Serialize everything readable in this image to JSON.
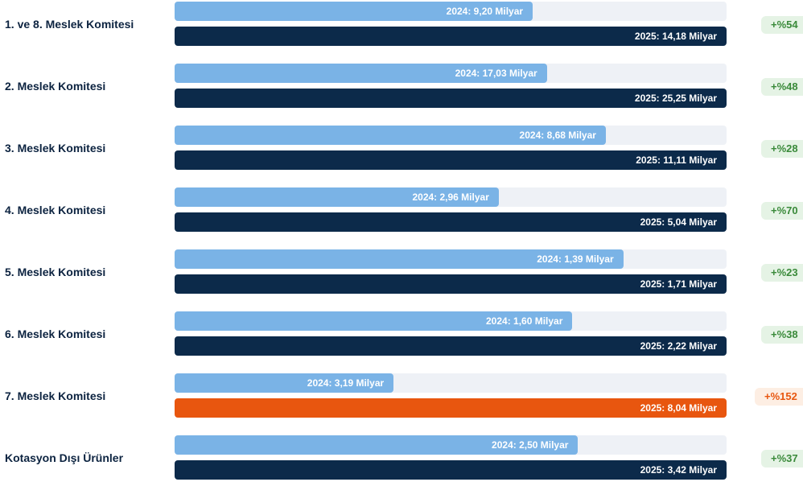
{
  "chart_data": {
    "type": "bar",
    "colors": {
      "previous": "#7ab3e6",
      "current": "#0c2a4a",
      "badge_bg": "#e5f3e5",
      "badge_text": "#3a8a3a"
    },
    "rows": [
      {
        "label": "1. ve 8. Meslek Komitesi",
        "values": [
          9.2,
          14.18
        ],
        "value_labels": [
          "2024: 9,20 Milyar",
          "2025: 14,18 Milyar"
        ],
        "change": "+%54"
      },
      {
        "label": "2. Meslek Komitesi",
        "values": [
          17.03,
          25.25
        ],
        "value_labels": [
          "2024: 17,03 Milyar",
          "2025: 25,25 Milyar"
        ],
        "change": "+%48"
      },
      {
        "label": "3. Meslek Komitesi",
        "values": [
          8.68,
          11.11
        ],
        "value_labels": [
          "2024: 8,68 Milyar",
          "2025: 11,11 Milyar"
        ],
        "change": "+%28"
      },
      {
        "label": "4. Meslek Komitesi",
        "values": [
          2.96,
          5.04
        ],
        "value_labels": [
          "2024: 2,96 Milyar",
          "2025: 5,04 Milyar"
        ],
        "change": "+%70"
      },
      {
        "label": "5. Meslek Komitesi",
        "values": [
          1.39,
          1.71
        ],
        "value_labels": [
          "2024: 1,39 Milyar",
          "2025: 1,71 Milyar"
        ],
        "change": "+%23"
      },
      {
        "label": "6. Meslek Komitesi",
        "values": [
          1.6,
          2.22
        ],
        "value_labels": [
          "2024: 1,60 Milyar",
          "2025: 2,22 Milyar"
        ],
        "change": "+%38"
      },
      {
        "label": "7. Meslek Komitesi",
        "values": [
          3.19,
          8.04
        ],
        "value_labels": [
          "2024: 3,19 Milyar",
          "2025: 8,04 Milyar"
        ],
        "change": "+%152",
        "color": "#e8560f",
        "badge_bg": "#fdeee3"
      },
      {
        "label": "Kotasyon Dışı Ürünler",
        "values": [
          2.5,
          3.42
        ],
        "value_labels": [
          "2024: 2,50 Milyar",
          "2025: 3,42 Milyar"
        ],
        "change": "+%37"
      }
    ]
  }
}
